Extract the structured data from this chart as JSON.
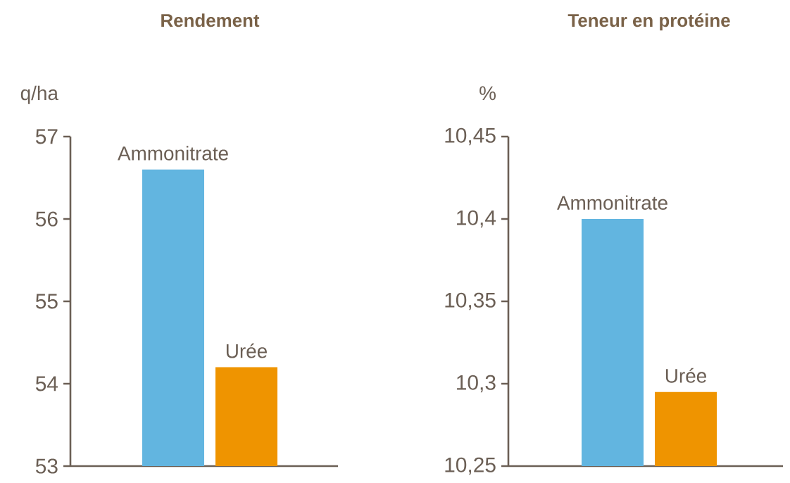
{
  "chart_data": [
    {
      "type": "bar",
      "title": "Rendement",
      "ylabel": "q/ha",
      "categories": [
        "Ammonitrate",
        "Urée"
      ],
      "values": [
        56.6,
        54.2
      ],
      "colors": [
        "#62b5e0",
        "#ef9400"
      ],
      "ylim": [
        53,
        57
      ],
      "yticks": [
        53,
        54,
        55,
        56,
        57
      ]
    },
    {
      "type": "bar",
      "title": "Teneur en protéine",
      "ylabel": "%",
      "categories": [
        "Ammonitrate",
        "Urée"
      ],
      "values": [
        10.4,
        10.295
      ],
      "colors": [
        "#62b5e0",
        "#ef9400"
      ],
      "ylim": [
        10.25,
        10.45
      ],
      "yticks": [
        {
          "value": 10.25,
          "label": "10,25"
        },
        {
          "value": 10.3,
          "label": "10,3"
        },
        {
          "value": 10.35,
          "label": "10,35"
        },
        {
          "value": 10.4,
          "label": "10,4"
        },
        {
          "value": 10.45,
          "label": "10,45"
        }
      ]
    }
  ]
}
